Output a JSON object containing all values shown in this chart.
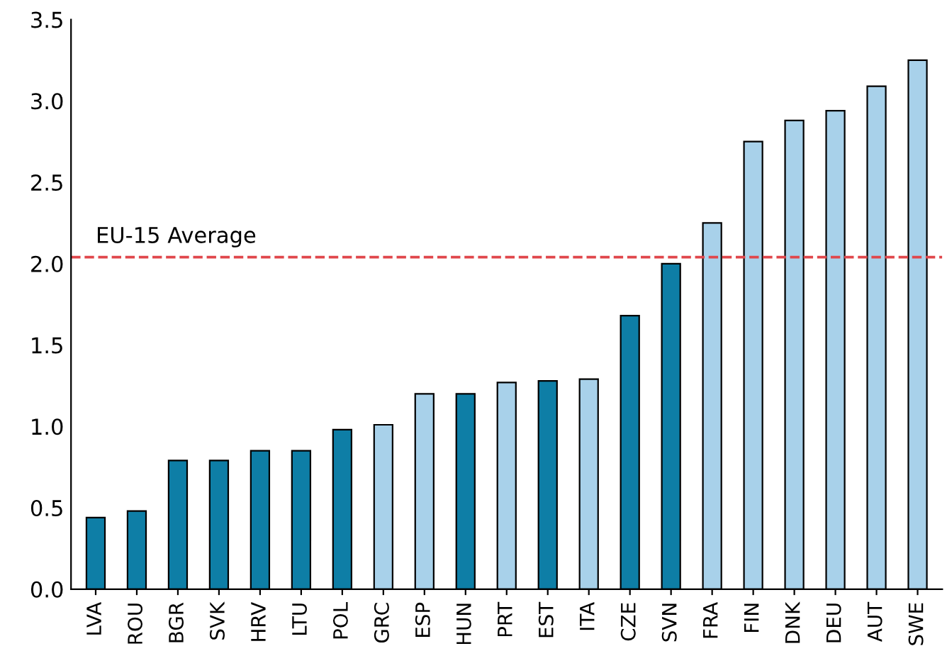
{
  "chart_data": {
    "type": "bar",
    "categories": [
      "LVA",
      "ROU",
      "BGR",
      "SVK",
      "HRV",
      "LTU",
      "POL",
      "GRC",
      "ESP",
      "HUN",
      "PRT",
      "EST",
      "ITA",
      "CZE",
      "SVN",
      "FRA",
      "FIN",
      "DNK",
      "DEU",
      "AUT",
      "SWE"
    ],
    "values": [
      0.44,
      0.48,
      0.79,
      0.79,
      0.85,
      0.85,
      0.98,
      1.01,
      1.2,
      1.2,
      1.27,
      1.28,
      1.29,
      1.68,
      2.0,
      2.25,
      2.75,
      2.88,
      2.94,
      3.09,
      3.25
    ],
    "colors": [
      "#0e7ea6",
      "#0e7ea6",
      "#0e7ea6",
      "#0e7ea6",
      "#0e7ea6",
      "#0e7ea6",
      "#0e7ea6",
      "#a8d1ea",
      "#a8d1ea",
      "#0e7ea6",
      "#a8d1ea",
      "#0e7ea6",
      "#a8d1ea",
      "#0e7ea6",
      "#0e7ea6",
      "#a8d1ea",
      "#a8d1ea",
      "#a8d1ea",
      "#a8d1ea",
      "#a8d1ea",
      "#a8d1ea"
    ],
    "ylim": [
      0,
      3.5
    ],
    "yticks": [
      {
        "value": 0,
        "label": "0.0"
      },
      {
        "value": 0.5,
        "label": "0.5"
      },
      {
        "value": 1,
        "label": "1.0"
      },
      {
        "value": 1.5,
        "label": "1.5"
      },
      {
        "value": 2,
        "label": "2.0"
      },
      {
        "value": 2.5,
        "label": "2.5"
      },
      {
        "value": 3,
        "label": "3.0"
      },
      {
        "value": 3.5,
        "label": "3.5"
      }
    ],
    "ref_lines": [
      {
        "axis": "y",
        "value": 2.04,
        "label": "EU-15 Average",
        "color": "#e0474c",
        "line_style": "dashed"
      }
    ],
    "grid": false,
    "legend": false
  }
}
